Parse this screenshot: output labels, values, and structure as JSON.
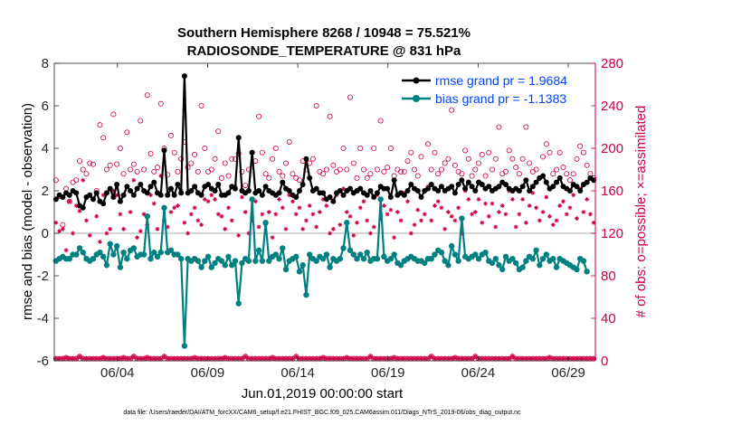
{
  "chart_data": {
    "type": "line",
    "title_line1": "Southern Hemisphere 8268 / 10948 = 75.521%",
    "title_line2": "RADIOSONDE_TEMPERATURE @ 831 hPa",
    "xlabel": "Jun.01,2019 00:00:00 start",
    "ylabel_left": "rmse and bias (model - observation)",
    "ylabel_right": "# of obs: o=possible; ×=assimilated",
    "footnote": "data file: /Users/raeder/DAI/ATM_forcXX/CAM6_setup/f.e21.FHIST_BGC.f09_025.CAM6assim.011/Diags_NTrS_2019-06/obs_diag_output.nc",
    "x_range": [
      0.5,
      30.5
    ],
    "ylim_left": [
      -6,
      8
    ],
    "ylim_right": [
      0,
      280
    ],
    "xticks": [
      {
        "x": 4,
        "label": "06/04"
      },
      {
        "x": 9,
        "label": "06/09"
      },
      {
        "x": 14,
        "label": "06/14"
      },
      {
        "x": 19,
        "label": "06/19"
      },
      {
        "x": 24,
        "label": "06/24"
      },
      {
        "x": 29,
        "label": "06/29"
      }
    ],
    "yticks_left": [
      "-6",
      "-4",
      "-2",
      "0",
      "2",
      "4",
      "6",
      "8"
    ],
    "yticks_left_values": [
      -6,
      -4,
      -2,
      0,
      2,
      4,
      6,
      8
    ],
    "yticks_right": [
      "0",
      "40",
      "80",
      "120",
      "160",
      "200",
      "240",
      "280"
    ],
    "yticks_right_values": [
      0,
      40,
      80,
      120,
      160,
      200,
      240,
      280
    ],
    "colors": {
      "rmse": "#000000",
      "bias": "#008080",
      "obs": "#cc0044",
      "legend_text": "#0044ff",
      "zero_line": "#bbbbbb",
      "right_axis": "#cc0044"
    },
    "legend": [
      {
        "name": "rmse grand pr = 1.9684",
        "series": "rmse"
      },
      {
        "name": "bias grand pr = -1.1383",
        "series": "bias"
      }
    ],
    "series": [
      {
        "name": "rmse",
        "values": [
          1.6,
          1.8,
          1.7,
          1.9,
          1.8,
          2.0,
          1.9,
          1.3,
          1.2,
          1.7,
          1.8,
          1.6,
          1.9,
          1.5,
          1.4,
          1.9,
          2.1,
          1.7,
          2.3,
          1.5,
          1.8,
          2.2,
          2.0,
          1.8,
          2.1,
          2.3,
          2.0,
          1.9,
          2.2,
          2.4,
          1.9,
          1.8,
          3.9,
          1.8,
          2.1,
          1.8,
          2.3,
          1.9,
          7.4,
          1.9,
          2.0,
          2.2,
          1.9,
          1.8,
          2.2,
          2.3,
          2.1,
          2.0,
          2.3,
          1.8,
          1.8,
          1.9,
          2.2,
          2.1,
          4.5,
          2.0,
          1.9,
          2.0,
          3.8,
          1.9,
          2.0,
          1.8,
          2.2,
          2.0,
          1.9,
          1.8,
          1.9,
          2.4,
          2.1,
          2.0,
          1.8,
          1.7,
          2.0,
          2.3,
          3.5,
          2.6,
          2.0,
          2.1,
          1.9,
          1.9,
          1.6,
          1.7,
          1.5,
          1.9,
          2.0,
          1.8,
          2.0,
          2.1,
          1.9,
          2.0,
          2.1,
          1.9,
          1.8,
          2.0,
          1.7,
          1.9,
          2.2,
          2.1,
          2.1,
          1.7,
          2.5,
          1.8,
          1.9,
          1.8,
          2.0,
          2.3,
          2.1,
          2.0,
          1.7,
          2.0,
          2.1,
          2.3,
          2.1,
          2.0,
          2.2,
          2.0,
          2.1,
          2.2,
          1.9,
          2.3,
          2.5,
          2.1,
          2.4,
          2.2,
          2.0,
          2.4,
          2.3,
          2.1,
          2.2,
          2.0,
          2.1,
          2.2,
          2.4,
          2.3,
          2.1,
          2.0,
          2.1,
          2.0,
          2.2,
          2.5,
          2.0,
          2.2,
          2.4,
          2.6,
          2.7,
          2.4,
          2.1,
          2.2,
          2.4,
          2.6,
          2.2,
          2.1,
          2.0,
          2.3,
          2.2,
          2.0,
          2.3,
          2.4,
          2.6,
          2.5
        ]
      },
      {
        "name": "bias",
        "values": [
          -1.3,
          -1.2,
          -1.1,
          -1.2,
          -1.2,
          -1.0,
          -1.0,
          -0.7,
          -0.9,
          -1.2,
          -1.3,
          -1.2,
          -1.0,
          -0.9,
          -1.1,
          -1.5,
          -0.5,
          -1.0,
          -0.6,
          -1.6,
          -0.9,
          -1.2,
          -0.8,
          -0.7,
          -1.1,
          -1.0,
          -1.0,
          0.8,
          -1.2,
          -0.9,
          -1.1,
          -0.9,
          1.2,
          -0.9,
          -0.8,
          -1.0,
          -1.0,
          -1.2,
          -5.3,
          -1.2,
          -1.3,
          -1.2,
          -1.3,
          -1.6,
          -1.3,
          -1.1,
          -1.6,
          -1.4,
          -1.2,
          -1.3,
          -1.5,
          -1.1,
          -1.5,
          -1.3,
          -3.3,
          -1.4,
          -1.2,
          -1.3,
          1.6,
          -1.3,
          -0.8,
          -1.3,
          0.5,
          -1.3,
          -1.1,
          -1.0,
          -1.2,
          -0.7,
          -1.7,
          -1.3,
          -1.2,
          -1.1,
          -1.8,
          -1.5,
          -2.9,
          -1.0,
          -1.2,
          -1.3,
          -1.1,
          -1.2,
          -1.0,
          -1.6,
          -1.2,
          -1.3,
          -1.2,
          -0.7,
          0.5,
          -0.8,
          -1.0,
          -1.2,
          -1.0,
          -1.2,
          -0.9,
          -1.3,
          -1.2,
          -1.2,
          1.6,
          -1.1,
          -1.3,
          -1.2,
          -1.0,
          -1.4,
          -1.5,
          -1.3,
          -1.2,
          -1.1,
          -1.2,
          -1.3,
          -1.3,
          -1.4,
          -1.2,
          -1.2,
          -1.0,
          -0.8,
          -0.9,
          -1.3,
          -1.5,
          -0.6,
          -1.0,
          -1.3,
          0.7,
          -1.1,
          -1.2,
          -1.1,
          -1.0,
          -1.2,
          -1.0,
          -0.9,
          -1.3,
          -1.4,
          -1.2,
          -1.5,
          -1.7,
          -1.1,
          -1.3,
          -1.2,
          -1.4,
          -1.7,
          -1.6,
          -1.3,
          -1.1,
          -1.2,
          -0.8,
          -1.5,
          -1.2,
          -1.0,
          -1.3,
          -1.2,
          -1.6,
          -1.2,
          -1.3,
          -1.4,
          -1.5,
          -1.6,
          -1.7,
          -1.2,
          -1.3,
          -1.8
        ]
      },
      {
        "name": "obs_possible",
        "values": [
          170,
          155,
          128,
          162,
          150,
          168,
          170,
          188,
          180,
          176,
          186,
          185,
          160,
          222,
          210,
          180,
          184,
          232,
          185,
          200,
          176,
          215,
          180,
          185,
          178,
          226,
          180,
          250,
          195,
          178,
          182,
          242,
          200,
          175,
          212,
          196,
          178,
          190,
          206,
          182,
          186,
          194,
          178,
          240,
          200,
          178,
          180,
          190,
          216,
          172,
          186,
          174,
          190,
          190,
          195,
          178,
          165,
          180,
          196,
          188,
          230,
          196,
          176,
          172,
          190,
          200,
          178,
          174,
          186,
          206,
          176,
          172,
          170,
          188,
          180,
          186,
          190,
          240,
          178,
          176,
          180,
          230,
          184,
          178,
          180,
          200,
          180,
          248,
          186,
          172,
          200,
          180,
          172,
          176,
          200,
          180,
          226,
          178,
          182,
          200,
          174,
          180,
          178,
          178,
          188,
          196,
          180,
          174,
          192,
          248,
          204,
          180,
          196,
          176,
          180,
          186,
          190,
          236,
          184,
          178,
          176,
          198,
          190,
          174,
          180,
          186,
          194,
          174,
          196,
          180,
          190,
          220,
          176,
          178,
          198,
          190,
          182,
          176,
          190,
          220,
          186,
          178,
          180,
          172,
          192,
          204,
          196,
          176,
          180,
          196,
          182,
          176,
          170,
          176,
          190,
          202,
          196,
          184,
          176,
          172
        ]
      },
      {
        "name": "obs_assimilated",
        "values": [
          130,
          122,
          124,
          104,
          150,
          120,
          146,
          141,
          170,
          132,
          118,
          152,
          136,
          112,
          156,
          120,
          124,
          160,
          156,
          138,
          124,
          164,
          140,
          170,
          116,
          122,
          138,
          128,
          156,
          148,
          124,
          174,
          132,
          126,
          140,
          144,
          146,
          160,
          130,
          120,
          138,
          144,
          132,
          128,
          152,
          150,
          156,
          152,
          138,
          136,
          124,
          144,
          132,
          164,
          118,
          154,
          140,
          120,
          132,
          150,
          126,
          138,
          128,
          140,
          116,
          138,
          152,
          144,
          124,
          156,
          150,
          138,
          144,
          124,
          132,
          146,
          138,
          126,
          140,
          152,
          146,
          120,
          124,
          156,
          128,
          162,
          140,
          136,
          118,
          130,
          144,
          150,
          132,
          120,
          126,
          156,
          134,
          146,
          138,
          142,
          116,
          140,
          132,
          158,
          150,
          120,
          128,
          142,
          132,
          138,
          164,
          132,
          146,
          150,
          144,
          124,
          140,
          136,
          132,
          144,
          120,
          160,
          152,
          138,
          140,
          152,
          130,
          148,
          136,
          148,
          126,
          140,
          146,
          138,
          160,
          152,
          126,
          138,
          152,
          130,
          146,
          158,
          144,
          132,
          140,
          154,
          136,
          128,
          132,
          146,
          150,
          138,
          144,
          156,
          134,
          162,
          140,
          152,
          138,
          130
        ]
      },
      {
        "name": "obs_possible_low",
        "values": [
          2,
          2,
          2,
          3,
          2,
          2,
          2,
          4,
          2,
          2,
          2,
          2,
          2,
          2,
          3,
          2,
          2,
          2,
          2,
          2,
          3,
          2,
          2,
          4,
          2,
          2,
          2,
          3,
          2,
          2,
          2,
          2,
          4,
          2,
          2,
          2,
          2,
          2,
          2,
          2,
          2,
          3,
          2,
          2,
          2,
          2,
          2,
          2,
          2,
          2,
          3,
          2,
          2,
          2,
          2,
          2,
          4,
          2,
          2,
          2,
          2,
          2,
          2,
          2,
          3,
          2,
          2,
          2,
          2,
          2,
          2,
          4,
          2,
          2,
          2,
          2,
          2,
          2,
          2,
          3,
          2,
          2,
          2,
          2,
          2,
          2,
          3,
          2,
          2,
          2,
          2,
          2,
          2,
          4,
          2,
          2,
          2,
          2,
          2,
          2,
          3,
          2,
          2,
          2,
          2,
          2,
          2,
          2,
          2,
          2,
          2,
          4,
          2,
          2,
          2,
          2,
          2,
          2,
          3,
          2,
          2,
          2,
          2,
          2,
          4,
          2,
          2,
          2,
          2,
          2,
          2,
          2,
          2,
          2,
          2,
          4,
          2,
          2,
          2,
          2,
          2,
          2,
          2,
          2,
          2,
          2,
          3,
          2,
          2,
          2,
          2,
          2,
          2,
          2,
          2,
          2,
          2,
          2,
          2,
          2
        ]
      },
      {
        "name": "obs_assimilated_low",
        "values": [
          2,
          2,
          2,
          3,
          2,
          2,
          2,
          4,
          2,
          2,
          2,
          2,
          2,
          2,
          3,
          2,
          2,
          2,
          2,
          2,
          3,
          2,
          2,
          4,
          2,
          2,
          2,
          3,
          2,
          2,
          2,
          2,
          4,
          2,
          2,
          2,
          2,
          2,
          2,
          2,
          2,
          3,
          2,
          2,
          2,
          2,
          2,
          2,
          2,
          2,
          3,
          2,
          2,
          2,
          2,
          2,
          4,
          2,
          2,
          2,
          2,
          2,
          2,
          2,
          3,
          2,
          2,
          2,
          2,
          2,
          2,
          4,
          2,
          2,
          2,
          2,
          2,
          2,
          2,
          3,
          2,
          2,
          2,
          2,
          2,
          2,
          3,
          2,
          2,
          2,
          2,
          2,
          2,
          4,
          2,
          2,
          2,
          2,
          2,
          2,
          3,
          2,
          2,
          2,
          2,
          2,
          2,
          2,
          2,
          2,
          2,
          4,
          2,
          2,
          2,
          2,
          2,
          2,
          3,
          2,
          2,
          2,
          2,
          2,
          4,
          2,
          2,
          2,
          2,
          2,
          2,
          2,
          2,
          2,
          2,
          4,
          2,
          2,
          2,
          2,
          2,
          2,
          2,
          2,
          2,
          2,
          3,
          2,
          2,
          2,
          2,
          2,
          2,
          2,
          2,
          2,
          2,
          2,
          2,
          2
        ]
      }
    ]
  }
}
